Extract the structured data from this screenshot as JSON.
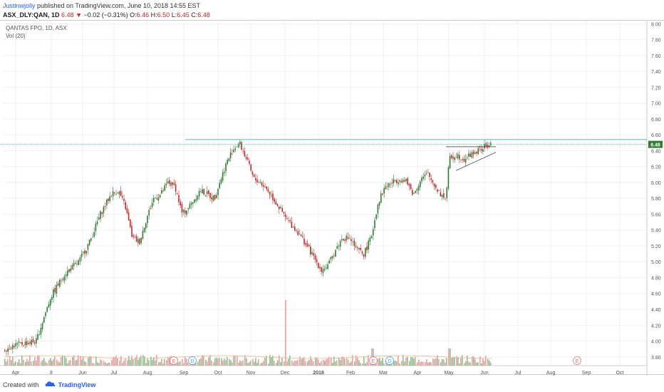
{
  "header": {
    "author": "Justinwjolly",
    "published": " published on TradingView.com, June 10, 2018 14:55 EST",
    "symbol": "ASX_DLY:QAN, 1D",
    "last": "6.48",
    "down_arrow": "▼",
    "change": "−0.02 (−0.31%)",
    "o_label": "O:",
    "o": "6.46",
    "h_label": "H:",
    "h": "6.50",
    "l_label": "L:",
    "l": "6.45",
    "c_label": "C:",
    "c": "6.48"
  },
  "legend": {
    "title": "QANTAS FPO, 1D, ASX",
    "vol": "Vol (20)"
  },
  "footer": {
    "created": "Created with",
    "brand": "TradingView"
  },
  "colors": {
    "up": "#2e7d32",
    "down": "#c62828",
    "vol_up": "#8fbf8f",
    "vol_down": "#e8a0a0",
    "line": "#26a69a",
    "price_tag": "#2e7d32",
    "grid": "#eef0f3"
  },
  "chart_data": {
    "type": "candlestick",
    "title": "QANTAS FPO, 1D, ASX",
    "y_ticks": [
      "3.80",
      "4.00",
      "4.20",
      "4.40",
      "4.60",
      "4.80",
      "5.00",
      "5.20",
      "5.40",
      "5.60",
      "5.80",
      "6.00",
      "6.20",
      "6.40",
      "6.60",
      "6.80",
      "7.00",
      "7.20",
      "7.40",
      "7.60",
      "7.80",
      "8.00"
    ],
    "y_range": [
      3.69,
      8.04
    ],
    "x_ticks": [
      "Apr",
      "8",
      "Jun",
      "Jul",
      "Aug",
      "Sep",
      "Oct",
      "Nov",
      "Dec",
      "2018",
      "Feb",
      "Mar",
      "Apr",
      "May",
      "Jun",
      "Jul",
      "Aug",
      "Sep",
      "Oct"
    ],
    "last_price": "6.48",
    "price_path": [
      [
        0,
        3.88
      ],
      [
        20,
        3.95
      ],
      [
        50,
        4.0
      ],
      [
        70,
        4.55
      ],
      [
        90,
        4.85
      ],
      [
        110,
        5.0
      ],
      [
        125,
        5.25
      ],
      [
        140,
        5.6
      ],
      [
        155,
        5.85
      ],
      [
        165,
        5.9
      ],
      [
        175,
        5.7
      ],
      [
        185,
        5.3
      ],
      [
        195,
        5.25
      ],
      [
        205,
        5.55
      ],
      [
        215,
        5.8
      ],
      [
        225,
        5.85
      ],
      [
        235,
        6.0
      ],
      [
        245,
        5.95
      ],
      [
        255,
        5.6
      ],
      [
        265,
        5.7
      ],
      [
        280,
        5.9
      ],
      [
        300,
        5.8
      ],
      [
        315,
        6.2
      ],
      [
        325,
        6.4
      ],
      [
        335,
        6.5
      ],
      [
        345,
        6.3
      ],
      [
        355,
        6.05
      ],
      [
        365,
        6.0
      ],
      [
        375,
        5.9
      ],
      [
        390,
        5.7
      ],
      [
        400,
        5.55
      ],
      [
        410,
        5.45
      ],
      [
        420,
        5.35
      ],
      [
        430,
        5.2
      ],
      [
        440,
        5.05
      ],
      [
        450,
        4.9
      ],
      [
        460,
        4.95
      ],
      [
        470,
        5.15
      ],
      [
        480,
        5.3
      ],
      [
        490,
        5.3
      ],
      [
        500,
        5.15
      ],
      [
        510,
        5.1
      ],
      [
        520,
        5.3
      ],
      [
        530,
        5.75
      ],
      [
        540,
        5.95
      ],
      [
        550,
        6.0
      ],
      [
        560,
        6.05
      ],
      [
        570,
        6.0
      ],
      [
        580,
        5.85
      ],
      [
        590,
        6.05
      ],
      [
        600,
        6.1
      ],
      [
        610,
        5.95
      ],
      [
        618,
        5.85
      ],
      [
        625,
        5.8
      ],
      [
        630,
        6.3
      ],
      [
        640,
        6.35
      ],
      [
        650,
        6.3
      ],
      [
        660,
        6.35
      ],
      [
        670,
        6.4
      ],
      [
        680,
        6.45
      ],
      [
        690,
        6.48
      ]
    ],
    "horizontal_levels": [
      6.54,
      6.45
    ],
    "trendline": [
      [
        640,
        6.15
      ],
      [
        696,
        6.38
      ]
    ],
    "events": [
      {
        "label": "E",
        "kind": "earnings",
        "x": 244
      },
      {
        "label": "D",
        "kind": "dividend",
        "x": 270
      },
      {
        "label": "E",
        "kind": "earnings",
        "x": 524
      },
      {
        "label": "D",
        "kind": "dividend",
        "x": 547
      },
      {
        "label": "E",
        "kind": "earnings",
        "x": 810
      }
    ],
    "volume_spikes": [
      {
        "x": 400,
        "relative": 1.0
      },
      {
        "x": 522,
        "relative": 0.2
      },
      {
        "x": 630,
        "relative": 0.2
      }
    ]
  }
}
